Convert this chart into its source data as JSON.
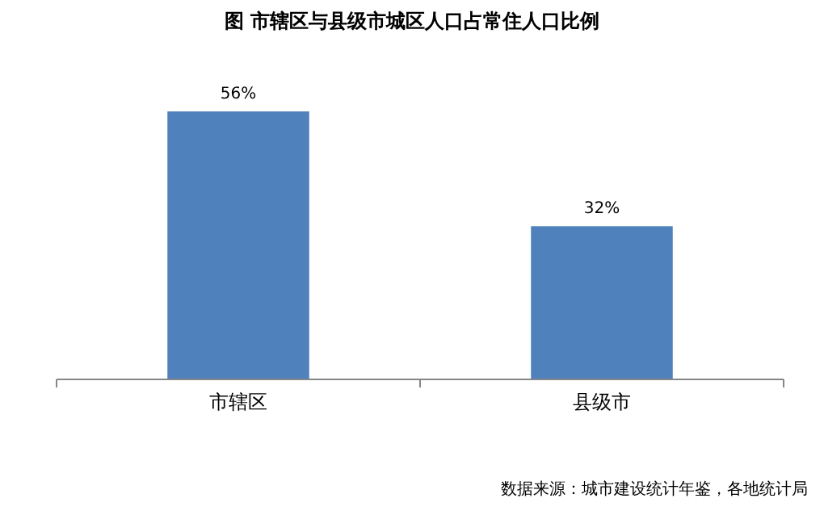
{
  "chart_data": {
    "type": "bar",
    "title": "图   市辖区与县级市城区人口占常住人口比例",
    "categories": [
      "市辖区",
      "县级市"
    ],
    "values": [
      56,
      32
    ],
    "value_labels": [
      "56%",
      "32%"
    ],
    "color": "#4f81bd",
    "annotations": [
      "数据来源：城市建设统计年鉴，各地统计局"
    ]
  }
}
